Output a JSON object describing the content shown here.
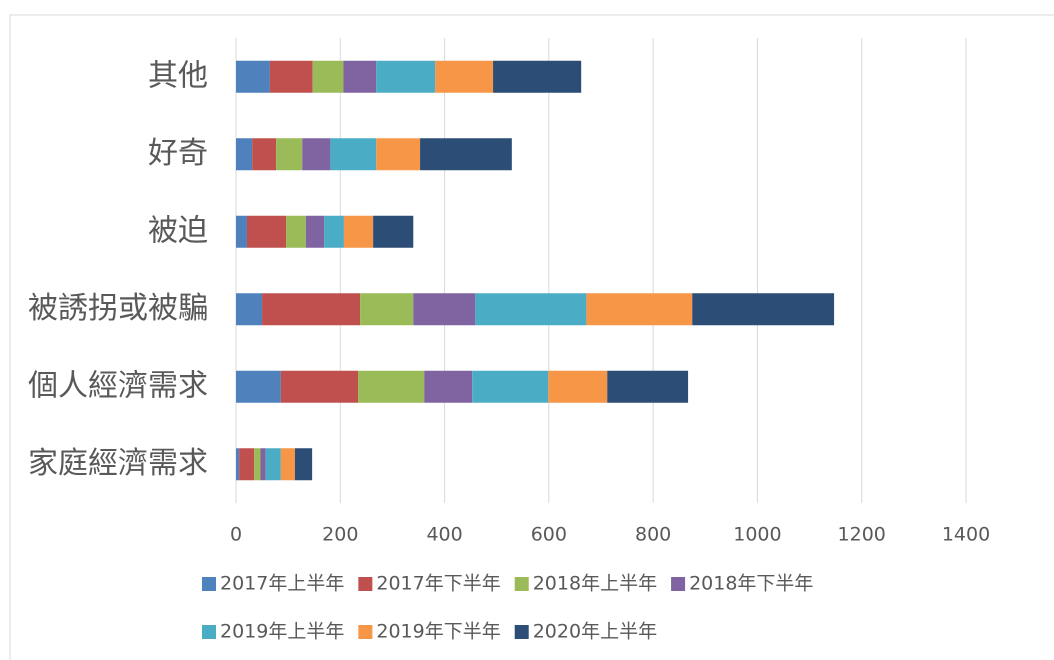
{
  "chart_data": {
    "type": "stacked-bar-horizontal",
    "categories": [
      "家庭經濟需求",
      "個人經濟需求",
      "被誘拐或被騙",
      "被迫",
      "好奇",
      "其他"
    ],
    "series": [
      {
        "name": "2017年上半年",
        "color": "#4f81bd",
        "values": [
          6,
          86,
          50,
          21,
          31,
          65
        ]
      },
      {
        "name": "2017年下半年",
        "color": "#c0504d",
        "values": [
          29,
          148,
          188,
          75,
          46,
          82
        ]
      },
      {
        "name": "2018年上半年",
        "color": "#9bbb59",
        "values": [
          12,
          127,
          102,
          38,
          50,
          59
        ]
      },
      {
        "name": "2018年下半年",
        "color": "#8064a2",
        "values": [
          10,
          92,
          119,
          35,
          54,
          63
        ]
      },
      {
        "name": "2019年上半年",
        "color": "#4bacc6",
        "values": [
          29,
          146,
          213,
          38,
          88,
          113
        ]
      },
      {
        "name": "2019年下半年",
        "color": "#f79646",
        "values": [
          27,
          113,
          203,
          56,
          84,
          111
        ]
      },
      {
        "name": "2020年上半年",
        "color": "#2c4d75",
        "values": [
          33,
          155,
          272,
          77,
          176,
          169
        ]
      }
    ],
    "xlim": [
      0,
      1400
    ],
    "xticks": [
      0,
      200,
      400,
      600,
      800,
      1000,
      1200,
      1400
    ],
    "grid": true
  }
}
